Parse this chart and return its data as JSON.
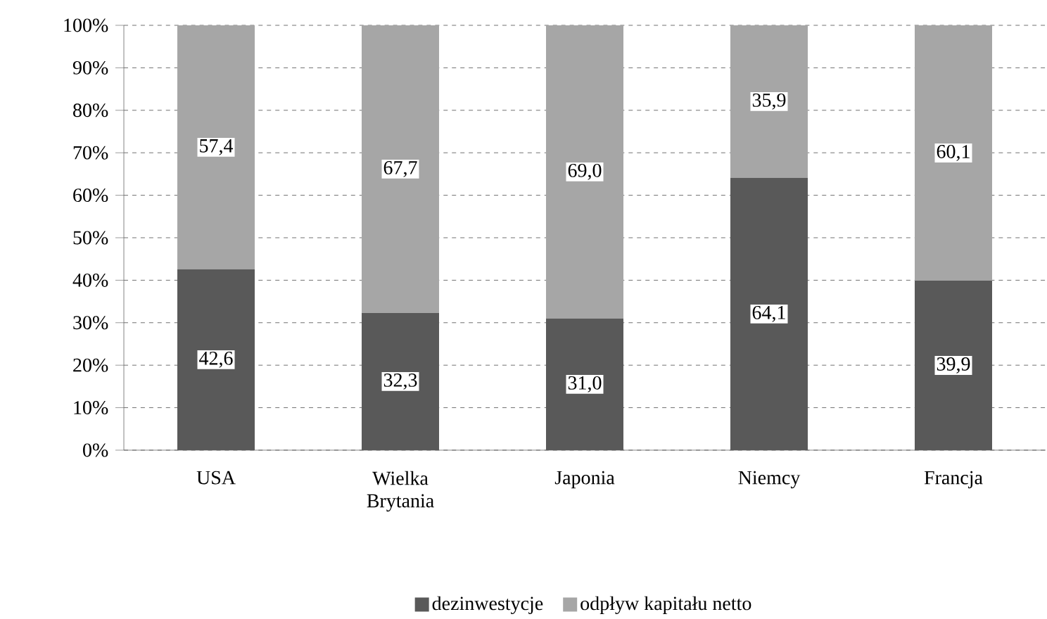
{
  "chart_data": {
    "type": "bar",
    "stacked": true,
    "categories": [
      "USA",
      "Wielka Brytania",
      "Japonia",
      "Niemcy",
      "Francja"
    ],
    "series": [
      {
        "name": "dezinwestycje",
        "color": "#595959",
        "values": [
          42.6,
          32.3,
          31.0,
          64.1,
          39.9
        ],
        "value_labels": [
          "42,6",
          "32,3",
          "31,0",
          "64,1",
          "39,9"
        ]
      },
      {
        "name": "odpływ kapitału netto",
        "color": "#a6a6a6",
        "values": [
          57.4,
          67.7,
          69.0,
          35.9,
          60.1
        ],
        "value_labels": [
          "57,4",
          "67,7",
          "69,0",
          "35,9",
          "60,1"
        ]
      }
    ],
    "ylim": [
      0,
      100
    ],
    "yticks": [
      {
        "value": 0,
        "label": "0%"
      },
      {
        "value": 10,
        "label": "10%"
      },
      {
        "value": 20,
        "label": "20%"
      },
      {
        "value": 30,
        "label": "30%"
      },
      {
        "value": 40,
        "label": "40%"
      },
      {
        "value": 50,
        "label": "50%"
      },
      {
        "value": 60,
        "label": "60%"
      },
      {
        "value": 70,
        "label": "70%"
      },
      {
        "value": 80,
        "label": "80%"
      },
      {
        "value": 90,
        "label": "90%"
      },
      {
        "value": 100,
        "label": "100%"
      }
    ],
    "grid": "y",
    "legend": "bottom"
  }
}
